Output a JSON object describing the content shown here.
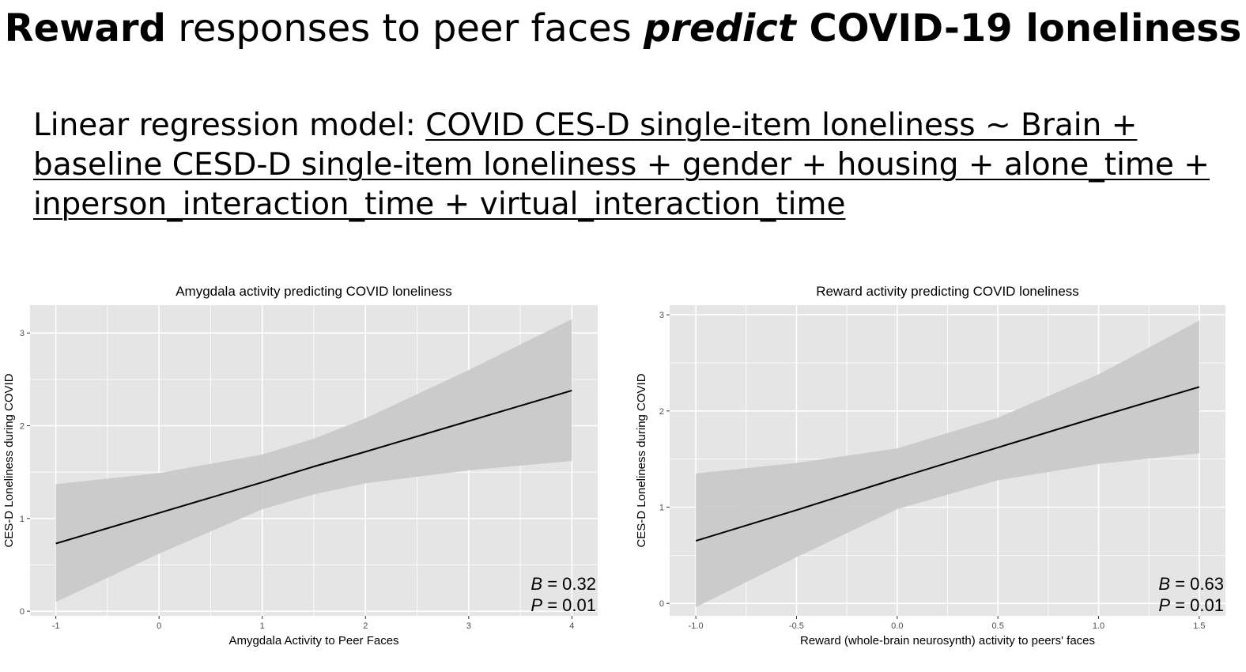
{
  "slide": {
    "title_parts": [
      {
        "text": "Reward",
        "style": "bold"
      },
      {
        "text": " responses to peer faces ",
        "style": "normal"
      },
      {
        "text": "predict",
        "style": "bold-italic"
      },
      {
        "text": " COVID-19 loneliness",
        "style": "bold"
      }
    ],
    "model_prefix": "Linear regression model: ",
    "model_formula": "COVID CES-D single-item loneliness ~ Brain + baseline CESD-D single-item loneliness + gender + housing + alone_time + inperson_interaction_time + virtual_interaction_time"
  },
  "colors": {
    "panel_bg": "#e5e5e5",
    "grid": "#ffffff",
    "ribbon": "#c8c8c8",
    "line": "#000000",
    "tick_text": "#4d4d4d"
  },
  "chart_data": [
    {
      "type": "line",
      "title": "Amygdala activity predicting COVID loneliness",
      "xlabel": "Amygdala Activity to Peer Faces",
      "ylabel": "CES-D Loneliness during COVID",
      "xlim": [
        -1.25,
        4.25
      ],
      "ylim": [
        -0.05,
        3.3
      ],
      "x_ticks": [
        -1,
        0,
        1,
        2,
        3,
        4
      ],
      "x_tick_labels": [
        "-1",
        "0",
        "1",
        "2",
        "3",
        "4"
      ],
      "y_ticks": [
        0,
        1,
        2,
        3
      ],
      "y_tick_labels": [
        "0",
        "1",
        "2",
        "3"
      ],
      "grid": true,
      "series": [
        {
          "x": [
            -1,
            0,
            1,
            1.5,
            2,
            3,
            4
          ],
          "y": [
            0.73,
            1.06,
            1.39,
            1.56,
            1.72,
            2.05,
            2.38
          ],
          "ci_low": [
            0.1,
            0.62,
            1.1,
            1.26,
            1.38,
            1.52,
            1.62
          ],
          "ci_high": [
            1.37,
            1.49,
            1.69,
            1.86,
            2.08,
            2.6,
            3.15
          ]
        }
      ],
      "stats": [
        {
          "label": "B",
          "text": " = 0.32"
        },
        {
          "label": "P",
          "text": " = 0.01"
        }
      ]
    },
    {
      "type": "line",
      "title": "Reward activity predicting COVID loneliness",
      "xlabel": "Reward (whole-brain neurosynth) activity to peers' faces",
      "ylabel": "CES-D Loneliness during COVID",
      "xlim": [
        -1.13,
        1.63
      ],
      "ylim": [
        -0.13,
        3.1
      ],
      "x_ticks": [
        -1.0,
        -0.5,
        0.0,
        0.5,
        1.0,
        1.5
      ],
      "x_tick_labels": [
        "-1.0",
        "-0.5",
        "0.0",
        "0.5",
        "1.0",
        "1.5"
      ],
      "y_ticks": [
        0,
        1,
        2,
        3
      ],
      "y_tick_labels": [
        "0",
        "1",
        "2",
        "3"
      ],
      "grid": true,
      "series": [
        {
          "x": [
            -1.0,
            -0.5,
            0.0,
            0.5,
            1.0,
            1.5
          ],
          "y": [
            0.65,
            0.97,
            1.3,
            1.62,
            1.94,
            2.25
          ],
          "ci_low": [
            -0.04,
            0.48,
            0.98,
            1.28,
            1.45,
            1.56
          ],
          "ci_high": [
            1.35,
            1.46,
            1.61,
            1.93,
            2.38,
            2.94
          ]
        }
      ],
      "stats": [
        {
          "label": "B",
          "text": " = 0.63"
        },
        {
          "label": "P",
          "text": " = 0.01"
        }
      ]
    }
  ]
}
